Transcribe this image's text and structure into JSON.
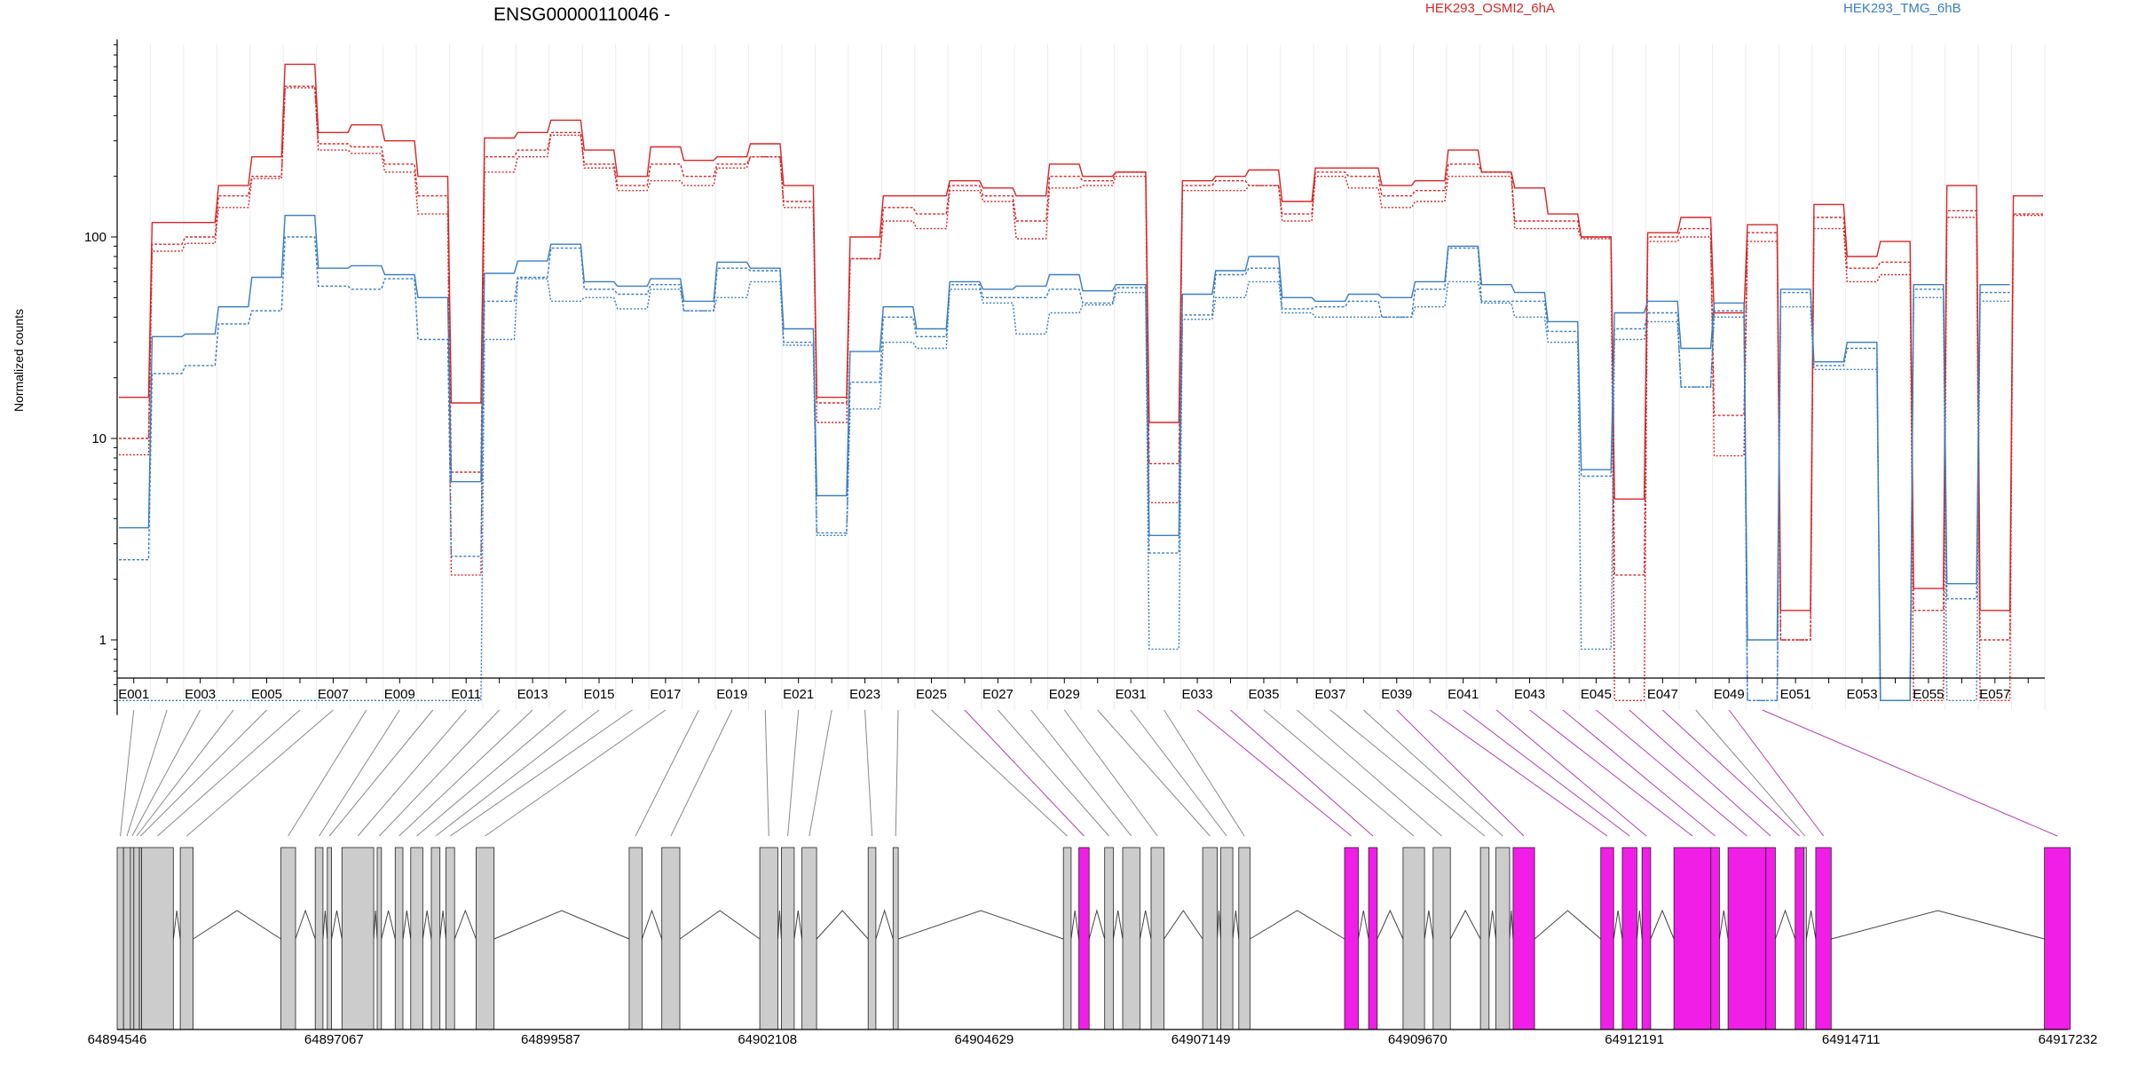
{
  "chart_data": {
    "type": "line",
    "title": "ENSG00000110046 -",
    "ylabel": "Normalized counts",
    "y_scale": "log",
    "ylim": [
      0.45,
      900
    ],
    "yticks": [
      "1",
      "10",
      "100"
    ],
    "legend": [
      {
        "label": "HEK293_OSMI2_6hA",
        "color": "#d62728"
      },
      {
        "label": "HEK293_TMG_6hB",
        "color": "#3a7ebf"
      }
    ],
    "exon_labels": [
      "E001",
      "E003",
      "E005",
      "E007",
      "E009",
      "E011",
      "E013",
      "E015",
      "E017",
      "E019",
      "E021",
      "E023",
      "E025",
      "E027",
      "E029",
      "E031",
      "E033",
      "E035",
      "E037",
      "E039",
      "E041",
      "E043",
      "E045",
      "E047",
      "E049",
      "E051",
      "E053",
      "E055",
      "E057"
    ],
    "genomic_ticks": [
      "64894546",
      "64897067",
      "64899587",
      "64902108",
      "64904629",
      "64907149",
      "64909670",
      "64912191",
      "64914711",
      "64917232"
    ],
    "genomic_range": [
      64894546,
      64917232
    ],
    "series": [
      {
        "name": "HEK293_OSMI2_6hA",
        "color": "#d62728",
        "values": [
          [
            16,
            10,
            8.3
          ],
          [
            118,
            92,
            85
          ],
          [
            118,
            100,
            93
          ],
          [
            180,
            160,
            140
          ],
          [
            250,
            200,
            195
          ],
          [
            720,
            560,
            550
          ],
          [
            330,
            290,
            270
          ],
          [
            360,
            280,
            260
          ],
          [
            300,
            230,
            210
          ],
          [
            200,
            160,
            130
          ],
          [
            15,
            6.8,
            2.1
          ],
          [
            310,
            250,
            210
          ],
          [
            330,
            270,
            250
          ],
          [
            380,
            330,
            320
          ],
          [
            270,
            230,
            220
          ],
          [
            200,
            180,
            170
          ],
          [
            280,
            230,
            190
          ],
          [
            240,
            200,
            180
          ],
          [
            250,
            230,
            220
          ],
          [
            290,
            250,
            250
          ],
          [
            180,
            150,
            140
          ],
          [
            16,
            15,
            12
          ],
          [
            100,
            78,
            78
          ],
          [
            160,
            140,
            120
          ],
          [
            160,
            130,
            110
          ],
          [
            190,
            180,
            170
          ],
          [
            175,
            160,
            150
          ],
          [
            160,
            120,
            98
          ],
          [
            230,
            200,
            175
          ],
          [
            200,
            190,
            180
          ],
          [
            210,
            210,
            200
          ],
          [
            12,
            7.5,
            4.8
          ],
          [
            190,
            180,
            170
          ],
          [
            200,
            190,
            170
          ],
          [
            215,
            180,
            180
          ],
          [
            150,
            130,
            120
          ],
          [
            220,
            210,
            200
          ],
          [
            220,
            200,
            175
          ],
          [
            180,
            160,
            140
          ],
          [
            190,
            170,
            150
          ],
          [
            270,
            230,
            200
          ],
          [
            210,
            210,
            200
          ],
          [
            175,
            120,
            110
          ],
          [
            130,
            120,
            110
          ],
          [
            100,
            100,
            98
          ],
          [
            5,
            2.1,
            0.5
          ],
          [
            105,
            100,
            95
          ],
          [
            125,
            110,
            100
          ],
          [
            42,
            13,
            8.2
          ],
          [
            115,
            105,
            95
          ],
          [
            1.4,
            1.0,
            1.0
          ],
          [
            145,
            125,
            110
          ],
          [
            80,
            70,
            60
          ],
          [
            95,
            75,
            65
          ],
          [
            1.8,
            1.4,
            0.5
          ],
          [
            180,
            135,
            125
          ],
          [
            1.4,
            1.0,
            0.5
          ],
          [
            160,
            130,
            128
          ]
        ]
      },
      {
        "name": "HEK293_TMG_6hB",
        "color": "#3a7ebf",
        "values": [
          [
            3.6,
            2.5,
            0.5
          ],
          [
            32,
            21,
            0.5
          ],
          [
            33,
            23,
            0.5
          ],
          [
            45,
            37,
            0.5
          ],
          [
            63,
            43,
            0.5
          ],
          [
            128,
            100,
            0.5
          ],
          [
            70,
            57,
            0.5
          ],
          [
            72,
            55,
            0.5
          ],
          [
            65,
            62,
            0.5
          ],
          [
            50,
            31,
            0.5
          ],
          [
            6.1,
            2.6,
            0.5
          ],
          [
            66,
            48,
            31
          ],
          [
            76,
            63,
            62
          ],
          [
            92,
            88,
            48
          ],
          [
            60,
            55,
            50
          ],
          [
            57,
            52,
            44
          ],
          [
            62,
            58,
            55
          ],
          [
            48,
            43,
            43
          ],
          [
            75,
            70,
            50
          ],
          [
            70,
            68,
            60
          ],
          [
            35,
            30,
            29
          ],
          [
            5.2,
            3.4,
            3.3
          ],
          [
            27,
            19,
            14
          ],
          [
            45,
            40,
            30
          ],
          [
            35,
            32,
            28
          ],
          [
            60,
            58,
            55
          ],
          [
            55,
            50,
            47
          ],
          [
            57,
            50,
            33
          ],
          [
            65,
            55,
            42
          ],
          [
            54,
            47,
            46
          ],
          [
            58,
            56,
            53
          ],
          [
            3.3,
            2.7,
            0.9
          ],
          [
            52,
            41,
            39
          ],
          [
            68,
            65,
            50
          ],
          [
            80,
            70,
            60
          ],
          [
            50,
            44,
            42
          ],
          [
            48,
            45,
            40
          ],
          [
            52,
            48,
            40
          ],
          [
            50,
            40,
            40
          ],
          [
            60,
            55,
            45
          ],
          [
            90,
            88,
            60
          ],
          [
            58,
            48,
            47
          ],
          [
            53,
            48,
            40
          ],
          [
            38,
            34,
            30
          ],
          [
            7,
            6.5,
            0.9
          ],
          [
            42,
            35,
            31
          ],
          [
            48,
            42,
            38
          ],
          [
            28,
            18,
            18
          ],
          [
            47,
            43,
            40
          ],
          [
            1.0,
            0.5,
            0.5
          ],
          [
            55,
            53,
            45
          ],
          [
            24,
            23,
            22
          ],
          [
            30,
            28,
            22
          ],
          [
            0.5,
            0.5,
            0.5
          ],
          [
            58,
            55,
            50
          ],
          [
            1.9,
            1.6,
            0.5
          ],
          [
            58,
            53,
            48
          ]
        ]
      }
    ],
    "exons": [
      {
        "start": 64894546,
        "end": 64894620,
        "type": "gray"
      },
      {
        "start": 64894620,
        "end": 64894700,
        "type": "gray"
      },
      {
        "start": 64894700,
        "end": 64894740,
        "type": "gray"
      },
      {
        "start": 64894740,
        "end": 64894805,
        "type": "gray"
      },
      {
        "start": 64894805,
        "end": 64894830,
        "type": "gray"
      },
      {
        "start": 64894830,
        "end": 64895200,
        "type": "gray"
      },
      {
        "start": 64895280,
        "end": 64895430,
        "type": "gray"
      },
      {
        "start": 64896450,
        "end": 64896620,
        "type": "gray"
      },
      {
        "start": 64896850,
        "end": 64896940,
        "type": "gray"
      },
      {
        "start": 64896990,
        "end": 64897040,
        "type": "gray"
      },
      {
        "start": 64897160,
        "end": 64897530,
        "type": "gray"
      },
      {
        "start": 64897570,
        "end": 64897620,
        "type": "gray"
      },
      {
        "start": 64897780,
        "end": 64897870,
        "type": "gray"
      },
      {
        "start": 64897960,
        "end": 64898100,
        "type": "gray"
      },
      {
        "start": 64898200,
        "end": 64898300,
        "type": "gray"
      },
      {
        "start": 64898370,
        "end": 64898470,
        "type": "gray"
      },
      {
        "start": 64898720,
        "end": 64898930,
        "type": "gray"
      },
      {
        "start": 64900500,
        "end": 64900650,
        "type": "gray"
      },
      {
        "start": 64900880,
        "end": 64901090,
        "type": "gray"
      },
      {
        "start": 64902020,
        "end": 64902230,
        "type": "gray"
      },
      {
        "start": 64902270,
        "end": 64902420,
        "type": "gray"
      },
      {
        "start": 64902510,
        "end": 64902680,
        "type": "gray"
      },
      {
        "start": 64903280,
        "end": 64903370,
        "type": "gray"
      },
      {
        "start": 64903570,
        "end": 64903630,
        "type": "gray"
      },
      {
        "start": 64905550,
        "end": 64905640,
        "type": "gray"
      },
      {
        "start": 64905730,
        "end": 64905850,
        "type": "magenta"
      },
      {
        "start": 64906030,
        "end": 64906130,
        "type": "gray"
      },
      {
        "start": 64906240,
        "end": 64906440,
        "type": "gray"
      },
      {
        "start": 64906570,
        "end": 64906720,
        "type": "gray"
      },
      {
        "start": 64907170,
        "end": 64907340,
        "type": "gray"
      },
      {
        "start": 64907380,
        "end": 64907520,
        "type": "gray"
      },
      {
        "start": 64907590,
        "end": 64907720,
        "type": "gray"
      },
      {
        "start": 64908820,
        "end": 64908980,
        "type": "magenta"
      },
      {
        "start": 64909100,
        "end": 64909200,
        "type": "magenta"
      },
      {
        "start": 64909500,
        "end": 64909750,
        "type": "gray"
      },
      {
        "start": 64909850,
        "end": 64910050,
        "type": "gray"
      },
      {
        "start": 64910400,
        "end": 64910500,
        "type": "gray"
      },
      {
        "start": 64910580,
        "end": 64910740,
        "type": "gray"
      },
      {
        "start": 64910780,
        "end": 64911030,
        "type": "magenta"
      },
      {
        "start": 64911800,
        "end": 64911950,
        "type": "magenta"
      },
      {
        "start": 64912050,
        "end": 64912220,
        "type": "magenta"
      },
      {
        "start": 64912280,
        "end": 64912380,
        "type": "magenta"
      },
      {
        "start": 64912650,
        "end": 64913080,
        "type": "magenta"
      },
      {
        "start": 64913080,
        "end": 64913180,
        "type": "magenta"
      },
      {
        "start": 64913280,
        "end": 64913720,
        "type": "magenta"
      },
      {
        "start": 64913720,
        "end": 64913830,
        "type": "magenta"
      },
      {
        "start": 64914060,
        "end": 64914160,
        "type": "magenta"
      },
      {
        "start": 64914160,
        "end": 64914190,
        "type": "gray"
      },
      {
        "start": 64914300,
        "end": 64914480,
        "type": "magenta"
      },
      {
        "start": 64916960,
        "end": 64917260,
        "type": "magenta"
      }
    ]
  }
}
